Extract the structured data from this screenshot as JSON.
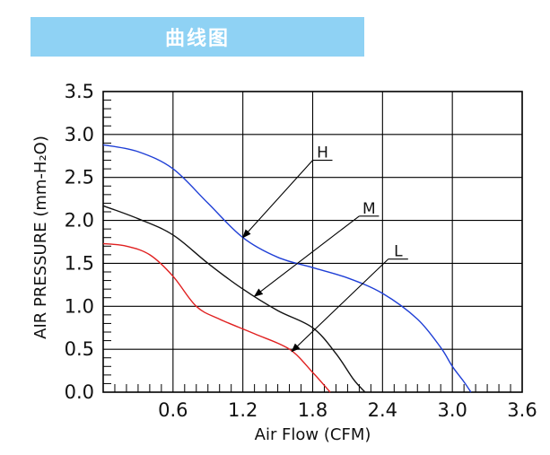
{
  "banner": {
    "title": "曲线图",
    "color": "#8fd2f4"
  },
  "chart_data": {
    "type": "line",
    "xlabel": "Air Flow (CFM)",
    "ylabel": "AIR PRESSURE (mm-H₂O)",
    "xlim": [
      0,
      3.6
    ],
    "ylim": [
      0,
      3.5
    ],
    "x_ticks": [
      "0.6",
      "1.2",
      "1.8",
      "2.4",
      "3.0",
      "3.6"
    ],
    "x_tick_values": [
      0.6,
      1.2,
      1.8,
      2.4,
      3.0,
      3.6
    ],
    "y_ticks": [
      "0.0",
      "0.5",
      "1.0",
      "1.5",
      "2.0",
      "2.5",
      "3.0",
      "3.5"
    ],
    "y_tick_values": [
      0.0,
      0.5,
      1.0,
      1.5,
      2.0,
      2.5,
      3.0,
      3.5
    ],
    "grid": true,
    "series": [
      {
        "name": "H",
        "color": "#1f3fd6",
        "x": [
          0.0,
          0.3,
          0.6,
          0.9,
          1.2,
          1.5,
          1.8,
          2.1,
          2.4,
          2.7,
          2.9,
          3.0,
          3.1,
          3.16
        ],
        "y": [
          2.88,
          2.8,
          2.6,
          2.2,
          1.8,
          1.57,
          1.45,
          1.33,
          1.15,
          0.85,
          0.52,
          0.3,
          0.12,
          0.0
        ]
      },
      {
        "name": "M",
        "color": "#111111",
        "x": [
          0.0,
          0.3,
          0.6,
          0.9,
          1.2,
          1.5,
          1.8,
          2.0,
          2.15,
          2.25
        ],
        "y": [
          2.17,
          2.02,
          1.83,
          1.5,
          1.2,
          0.95,
          0.75,
          0.45,
          0.15,
          0.0
        ]
      },
      {
        "name": "L",
        "color": "#e02020",
        "x": [
          0.0,
          0.2,
          0.4,
          0.6,
          0.8,
          1.0,
          1.3,
          1.6,
          1.8,
          1.95
        ],
        "y": [
          1.73,
          1.7,
          1.6,
          1.35,
          1.0,
          0.85,
          0.68,
          0.5,
          0.23,
          0.0
        ]
      }
    ]
  }
}
